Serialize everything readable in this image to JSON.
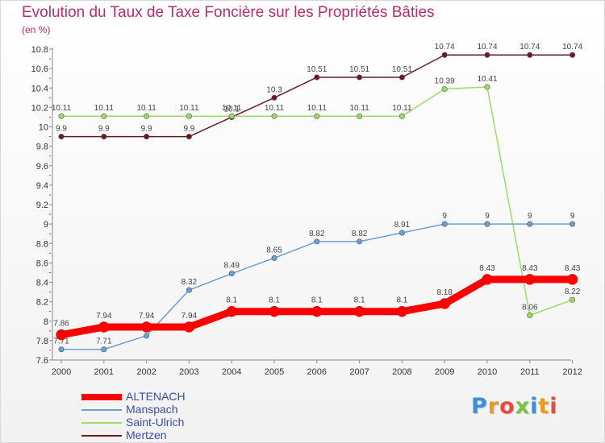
{
  "chart_data": {
    "type": "line",
    "title": "Evolution du Taux de Taxe Foncière sur les Propriétés Bâties",
    "subtitle": "(en %)",
    "x": [
      "2000",
      "2001",
      "2002",
      "2003",
      "2004",
      "2005",
      "2006",
      "2007",
      "2008",
      "2009",
      "2010",
      "2011",
      "2012"
    ],
    "ylim": [
      7.6,
      10.8
    ],
    "yticks": [
      "7.6",
      "7.8",
      "8",
      "8.2",
      "8.4",
      "8.6",
      "8.8",
      "9",
      "9.2",
      "9.4",
      "9.6",
      "9.8",
      "10",
      "10.2",
      "10.4",
      "10.6",
      "10.8"
    ],
    "grid": false,
    "legend_position": "bottom-left",
    "series": [
      {
        "name": "Mertzen",
        "color": "#6b1a22",
        "values": [
          9.9,
          9.9,
          9.9,
          9.9,
          10.1,
          10.3,
          10.51,
          10.51,
          10.51,
          10.74,
          10.74,
          10.74,
          10.74
        ],
        "labels": [
          "9.9",
          "9.9",
          "9.9",
          "9.9",
          "10.1",
          "10.3",
          "10.51",
          "10.51",
          "10.51",
          "10.74",
          "10.74",
          "10.74",
          "10.74"
        ]
      },
      {
        "name": "Saint-Ulrich",
        "color": "#99dd66",
        "values": [
          10.11,
          10.11,
          10.11,
          10.11,
          10.11,
          10.11,
          10.11,
          10.11,
          10.11,
          10.39,
          10.41,
          8.06,
          8.22
        ],
        "labels": [
          "10.11",
          "10.11",
          "10.11",
          "10.11",
          "10.11",
          "10.11",
          "10.11",
          "10.11",
          "10.11",
          "10.39",
          "10.41",
          "8.06",
          "8.22"
        ]
      },
      {
        "name": "Manspach",
        "color": "#6a9fd4",
        "values": [
          7.71,
          7.71,
          7.85,
          8.32,
          8.49,
          8.65,
          8.82,
          8.82,
          8.91,
          9,
          9,
          9,
          9
        ],
        "labels": [
          "7.71",
          "7.71",
          "7.85",
          "8.32",
          "8.49",
          "8.65",
          "8.82",
          "8.82",
          "8.91",
          "9",
          "9",
          "9",
          "9"
        ]
      },
      {
        "name": "ALTENACH",
        "color": "#ff0000",
        "values": [
          7.86,
          7.94,
          7.94,
          7.94,
          8.1,
          8.1,
          8.1,
          8.1,
          8.1,
          8.18,
          8.43,
          8.43,
          8.43
        ],
        "labels": [
          "7.86",
          "7.94",
          "7.94",
          "7.94",
          "8.1",
          "8.1",
          "8.1",
          "8.1",
          "8.1",
          "8.18",
          "8.43",
          "8.43",
          "8.43"
        ]
      }
    ],
    "legend_order": [
      "ALTENACH",
      "Manspach",
      "Saint-Ulrich",
      "Mertzen"
    ]
  },
  "brand": {
    "letters": [
      {
        "char": "P",
        "color": "#3b8fd6"
      },
      {
        "char": "r",
        "color": "#f09a1d"
      },
      {
        "char": "o",
        "color": "#e84b3c"
      },
      {
        "char": "x",
        "color": "#7cc242"
      },
      {
        "char": "i",
        "color": "#3b8fd6"
      },
      {
        "char": "t",
        "color": "#f09a1d"
      },
      {
        "char": "i",
        "color": "#e84b3c"
      }
    ]
  }
}
